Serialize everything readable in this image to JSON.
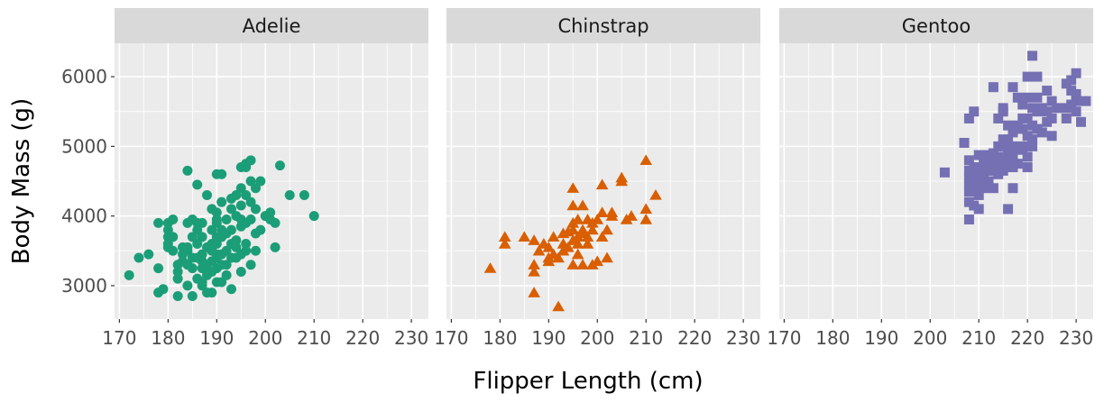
{
  "chart_data": {
    "type": "scatter",
    "xlabel": "Flipper Length (cm)",
    "ylabel": "Body Mass (g)",
    "xlim": [
      169,
      233.5
    ],
    "ylim": [
      2520,
      6480
    ],
    "x_ticks": [
      170,
      180,
      190,
      200,
      210,
      220,
      230
    ],
    "y_ticks": [
      3000,
      4000,
      5000,
      6000
    ],
    "grid": true,
    "panels": [
      {
        "name": "Adelie",
        "color": "#1b9e77",
        "marker": "circle",
        "points": [
          [
            172,
            3150
          ],
          [
            174,
            3400
          ],
          [
            176,
            3450
          ],
          [
            178,
            3250
          ],
          [
            178,
            2900
          ],
          [
            178,
            3900
          ],
          [
            179,
            2950
          ],
          [
            180,
            3600
          ],
          [
            180,
            3550
          ],
          [
            180,
            3800
          ],
          [
            180,
            3700
          ],
          [
            180,
            3900
          ],
          [
            181,
            3950
          ],
          [
            181,
            3500
          ],
          [
            181,
            3700
          ],
          [
            182,
            3200
          ],
          [
            182,
            3300
          ],
          [
            182,
            2850
          ],
          [
            182,
            3100
          ],
          [
            183,
            3450
          ],
          [
            183,
            3550
          ],
          [
            183,
            3350
          ],
          [
            184,
            3000
          ],
          [
            184,
            3300
          ],
          [
            184,
            3500
          ],
          [
            184,
            3550
          ],
          [
            184,
            3900
          ],
          [
            184,
            4650
          ],
          [
            185,
            2850
          ],
          [
            185,
            3250
          ],
          [
            185,
            3400
          ],
          [
            185,
            3700
          ],
          [
            185,
            3950
          ],
          [
            186,
            3100
          ],
          [
            186,
            3400
          ],
          [
            186,
            3600
          ],
          [
            186,
            3800
          ],
          [
            186,
            3900
          ],
          [
            186,
            4450
          ],
          [
            187,
            3000
          ],
          [
            187,
            3250
          ],
          [
            187,
            3350
          ],
          [
            187,
            3450
          ],
          [
            187,
            3700
          ],
          [
            187,
            3900
          ],
          [
            187,
            3050
          ],
          [
            188,
            2900
          ],
          [
            188,
            3150
          ],
          [
            188,
            3300
          ],
          [
            188,
            3550
          ],
          [
            188,
            4300
          ],
          [
            188,
            3200
          ],
          [
            189,
            3200
          ],
          [
            189,
            3350
          ],
          [
            189,
            3500
          ],
          [
            189,
            3600
          ],
          [
            189,
            3800
          ],
          [
            189,
            4100
          ],
          [
            189,
            2900
          ],
          [
            190,
            3050
          ],
          [
            190,
            3250
          ],
          [
            190,
            3400
          ],
          [
            190,
            3450
          ],
          [
            190,
            3600
          ],
          [
            190,
            3700
          ],
          [
            190,
            3900
          ],
          [
            190,
            3950
          ],
          [
            190,
            4050
          ],
          [
            190,
            4600
          ],
          [
            191,
            3050
          ],
          [
            191,
            3300
          ],
          [
            191,
            3450
          ],
          [
            191,
            3700
          ],
          [
            191,
            3800
          ],
          [
            191,
            4200
          ],
          [
            191,
            4600
          ],
          [
            192,
            3150
          ],
          [
            192,
            3300
          ],
          [
            192,
            3500
          ],
          [
            192,
            3750
          ],
          [
            192,
            3950
          ],
          [
            193,
            2950
          ],
          [
            193,
            3400
          ],
          [
            193,
            3600
          ],
          [
            193,
            3800
          ],
          [
            193,
            4100
          ],
          [
            193,
            4250
          ],
          [
            194,
            3400
          ],
          [
            194,
            3550
          ],
          [
            194,
            3650
          ],
          [
            194,
            4000
          ],
          [
            194,
            4300
          ],
          [
            195,
            3200
          ],
          [
            195,
            3450
          ],
          [
            195,
            3850
          ],
          [
            195,
            3950
          ],
          [
            195,
            4150
          ],
          [
            195,
            4400
          ],
          [
            195,
            4700
          ],
          [
            196,
            3500
          ],
          [
            196,
            3600
          ],
          [
            196,
            3900
          ],
          [
            196,
            4300
          ],
          [
            196,
            4700
          ],
          [
            196,
            4750
          ],
          [
            197,
            3300
          ],
          [
            197,
            3950
          ],
          [
            197,
            4200
          ],
          [
            197,
            4500
          ],
          [
            197,
            4800
          ],
          [
            198,
            3500
          ],
          [
            198,
            3750
          ],
          [
            198,
            4100
          ],
          [
            198,
            4400
          ],
          [
            199,
            3800
          ],
          [
            199,
            4500
          ],
          [
            200,
            4000
          ],
          [
            201,
            3950
          ],
          [
            201,
            4050
          ],
          [
            202,
            3550
          ],
          [
            202,
            3900
          ],
          [
            203,
            4725
          ],
          [
            205,
            4300
          ],
          [
            208,
            4300
          ],
          [
            210,
            4000
          ]
        ]
      },
      {
        "name": "Chinstrap",
        "color": "#d95f02",
        "marker": "triangle",
        "points": [
          [
            178,
            3250
          ],
          [
            181,
            3600
          ],
          [
            181,
            3700
          ],
          [
            185,
            3700
          ],
          [
            187,
            2900
          ],
          [
            187,
            3200
          ],
          [
            187,
            3300
          ],
          [
            187,
            3650
          ],
          [
            188,
            3500
          ],
          [
            189,
            3600
          ],
          [
            190,
            3400
          ],
          [
            190,
            3350
          ],
          [
            190,
            3550
          ],
          [
            191,
            3450
          ],
          [
            191,
            3700
          ],
          [
            192,
            2700
          ],
          [
            192,
            3400
          ],
          [
            193,
            3600
          ],
          [
            193,
            3750
          ],
          [
            193,
            3500
          ],
          [
            194,
            3775
          ],
          [
            194,
            3550
          ],
          [
            195,
            3300
          ],
          [
            195,
            3650
          ],
          [
            195,
            3800
          ],
          [
            195,
            3900
          ],
          [
            195,
            4150
          ],
          [
            195,
            4400
          ],
          [
            196,
            3600
          ],
          [
            196,
            3700
          ],
          [
            196,
            3950
          ],
          [
            196,
            3450
          ],
          [
            197,
            3300
          ],
          [
            197,
            3750
          ],
          [
            197,
            3800
          ],
          [
            197,
            4150
          ],
          [
            198,
            3600
          ],
          [
            198,
            3950
          ],
          [
            198,
            3700
          ],
          [
            199,
            3300
          ],
          [
            199,
            3800
          ],
          [
            199,
            3900
          ],
          [
            200,
            3350
          ],
          [
            200,
            3950
          ],
          [
            201,
            3700
          ],
          [
            201,
            4050
          ],
          [
            201,
            4450
          ],
          [
            202,
            3400
          ],
          [
            202,
            3800
          ],
          [
            203,
            4050
          ],
          [
            203,
            4000
          ],
          [
            205,
            4500
          ],
          [
            205,
            4550
          ],
          [
            206,
            3950
          ],
          [
            207,
            4000
          ],
          [
            210,
            4100
          ],
          [
            210,
            3950
          ],
          [
            210,
            4800
          ],
          [
            212,
            4300
          ]
        ]
      },
      {
        "name": "Gentoo",
        "color": "#7570b3",
        "marker": "square",
        "points": [
          [
            203,
            4625
          ],
          [
            207,
            5050
          ],
          [
            208,
            3950
          ],
          [
            208,
            4200
          ],
          [
            208,
            4350
          ],
          [
            208,
            4450
          ],
          [
            208,
            4550
          ],
          [
            208,
            4650
          ],
          [
            208,
            4800
          ],
          [
            208,
            5400
          ],
          [
            209,
            4150
          ],
          [
            209,
            4400
          ],
          [
            209,
            4500
          ],
          [
            209,
            4700
          ],
          [
            209,
            5500
          ],
          [
            210,
            4100
          ],
          [
            210,
            4300
          ],
          [
            210,
            4450
          ],
          [
            210,
            4600
          ],
          [
            210,
            4700
          ],
          [
            210,
            4875
          ],
          [
            211,
            4400
          ],
          [
            211,
            4550
          ],
          [
            211,
            4800
          ],
          [
            212,
            4500
          ],
          [
            212,
            4650
          ],
          [
            212,
            4700
          ],
          [
            212,
            4750
          ],
          [
            212,
            4875
          ],
          [
            213,
            4400
          ],
          [
            213,
            4750
          ],
          [
            213,
            4900
          ],
          [
            213,
            5850
          ],
          [
            214,
            4600
          ],
          [
            214,
            4700
          ],
          [
            214,
            4850
          ],
          [
            214,
            5000
          ],
          [
            214,
            5400
          ],
          [
            215,
            4650
          ],
          [
            215,
            4700
          ],
          [
            215,
            4800
          ],
          [
            215,
            5000
          ],
          [
            215,
            5100
          ],
          [
            215,
            5500
          ],
          [
            215,
            5550
          ],
          [
            216,
            4100
          ],
          [
            216,
            4750
          ],
          [
            216,
            4875
          ],
          [
            216,
            5000
          ],
          [
            216,
            5100
          ],
          [
            216,
            5300
          ],
          [
            217,
            4400
          ],
          [
            217,
            4700
          ],
          [
            217,
            4875
          ],
          [
            217,
            5200
          ],
          [
            217,
            5850
          ],
          [
            218,
            4750
          ],
          [
            218,
            5000
          ],
          [
            218,
            5300
          ],
          [
            218,
            5700
          ],
          [
            219,
            4950
          ],
          [
            219,
            5250
          ],
          [
            219,
            5400
          ],
          [
            219,
            5600
          ],
          [
            220,
            4700
          ],
          [
            220,
            4850
          ],
          [
            220,
            5000
          ],
          [
            220,
            5150
          ],
          [
            220,
            5400
          ],
          [
            220,
            5700
          ],
          [
            220,
            6000
          ],
          [
            221,
            5000
          ],
          [
            221,
            5100
          ],
          [
            221,
            5300
          ],
          [
            221,
            5550
          ],
          [
            221,
            6300
          ],
          [
            222,
            5250
          ],
          [
            222,
            5500
          ],
          [
            222,
            5700
          ],
          [
            222,
            6000
          ],
          [
            223,
            5200
          ],
          [
            223,
            5550
          ],
          [
            224,
            5350
          ],
          [
            224,
            5500
          ],
          [
            224,
            5800
          ],
          [
            225,
            5150
          ],
          [
            225,
            5400
          ],
          [
            225,
            5650
          ],
          [
            226,
            5550
          ],
          [
            228,
            5400
          ],
          [
            228,
            5550
          ],
          [
            228,
            5900
          ],
          [
            229,
            5600
          ],
          [
            229,
            5800
          ],
          [
            229,
            5950
          ],
          [
            230,
            5500
          ],
          [
            230,
            5650
          ],
          [
            230,
            5750
          ],
          [
            230,
            6050
          ],
          [
            231,
            5350
          ],
          [
            232,
            5650
          ]
        ]
      }
    ]
  }
}
